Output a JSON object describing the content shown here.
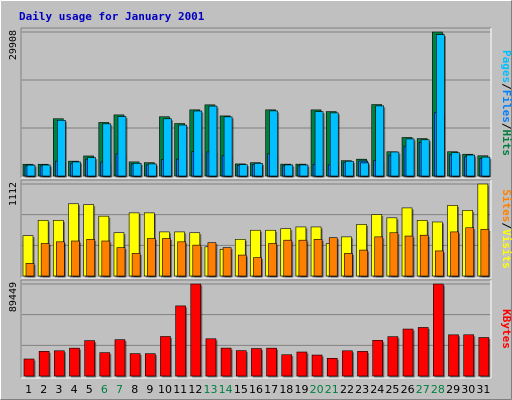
{
  "chart_data": {
    "type": "bar",
    "title": "Daily usage for January 2001",
    "days": [
      "1",
      "2",
      "3",
      "4",
      "5",
      "6",
      "7",
      "8",
      "9",
      "10",
      "11",
      "12",
      "13",
      "14",
      "15",
      "16",
      "17",
      "18",
      "19",
      "20",
      "21",
      "22",
      "23",
      "24",
      "25",
      "26",
      "27",
      "28",
      "29",
      "30",
      "31"
    ],
    "weekend_days": [
      "6",
      "7",
      "13",
      "14",
      "20",
      "21",
      "27",
      "28"
    ],
    "colors": {
      "hits": "#008040",
      "files": "#0080ff",
      "pages": "#00c0ff",
      "visits": "#ffff00",
      "sites": "#ff8000",
      "kbytes": "#ff0000",
      "weekday_label": "#000000",
      "weekend_label": "#008040",
      "title": "#0000c0",
      "background": "#c0c0c0",
      "plot": "#c0c0c0"
    },
    "panels": [
      {
        "name": "hits-files-pages",
        "max_label": "29908",
        "ymax": 29908,
        "legend": [
          "Pages",
          "Files",
          "Hits"
        ],
        "series": [
          {
            "name": "Hits",
            "values": [
              2440,
              2440,
              11890,
              3080,
              4160,
              11120,
              12690,
              2930,
              2770,
              12310,
              10900,
              13740,
              14780,
              12480,
              2510,
              2770,
              13740,
              2460,
              2460,
              13730,
              13380,
              3190,
              3490,
              14840,
              5040,
              8000,
              7770,
              29908,
              5040,
              4520,
              4200
            ]
          },
          {
            "name": "Files",
            "values": [
              2100,
              2100,
              3080,
              2600,
              3500,
              2900,
              4600,
              2500,
              2300,
              3400,
              3500,
              5040,
              5000,
              4200,
              2200,
              2400,
              4600,
              2100,
              2100,
              2400,
              2300,
              2800,
              3100,
              3200,
              4300,
              6200,
              7000,
              13140,
              4400,
              4000,
              3600
            ]
          },
          {
            "name": "Pages",
            "values": [
              2260,
              2280,
              11570,
              2920,
              3820,
              10830,
              12350,
              2620,
              2510,
              11880,
              10580,
              13500,
              14510,
              12280,
              2360,
              2620,
              13520,
              2300,
              2300,
              13360,
              13110,
              3060,
              2720,
              14560,
              4980,
              7700,
              7520,
              29350,
              4830,
              4350,
              3920
            ]
          }
        ]
      },
      {
        "name": "visits-sites",
        "max_label": "1112",
        "ymax": 1112,
        "legend": [
          "Sites",
          "/",
          "Visits"
        ],
        "series": [
          {
            "name": "Visits",
            "values": [
              487,
              673,
              673,
              873,
              863,
              723,
              523,
              763,
              763,
              533,
              533,
              523,
              353,
              323,
              443,
              553,
              553,
              573,
              593,
              593,
              393,
              473,
              623,
              743,
              703,
              823,
              673,
              653,
              853,
              793,
              1112
            ]
          },
          {
            "name": "Sites",
            "values": [
              153,
              393,
              413,
              423,
              443,
              423,
              343,
              273,
              453,
              453,
              413,
              373,
              403,
              343,
              253,
              223,
              393,
              433,
              433,
              443,
              463,
              273,
              313,
              473,
              523,
              483,
              493,
              303,
              533,
              583,
              563
            ]
          }
        ]
      },
      {
        "name": "kbytes",
        "max_label": "89449",
        "ymax": 89449,
        "legend": [
          "KBytes"
        ],
        "series": [
          {
            "name": "KBytes",
            "values": [
              16520,
              23970,
              24520,
              27070,
              34420,
              22720,
              35320,
              21770,
              21700,
              38410,
              68150,
              89449,
              36200,
              27120,
              24640,
              26710,
              27070,
              20670,
              23320,
              20370,
              17220,
              24500,
              23920,
              34670,
              38230,
              45630,
              47180,
              89449,
              40030,
              40080,
              37410
            ]
          }
        ]
      }
    ]
  }
}
